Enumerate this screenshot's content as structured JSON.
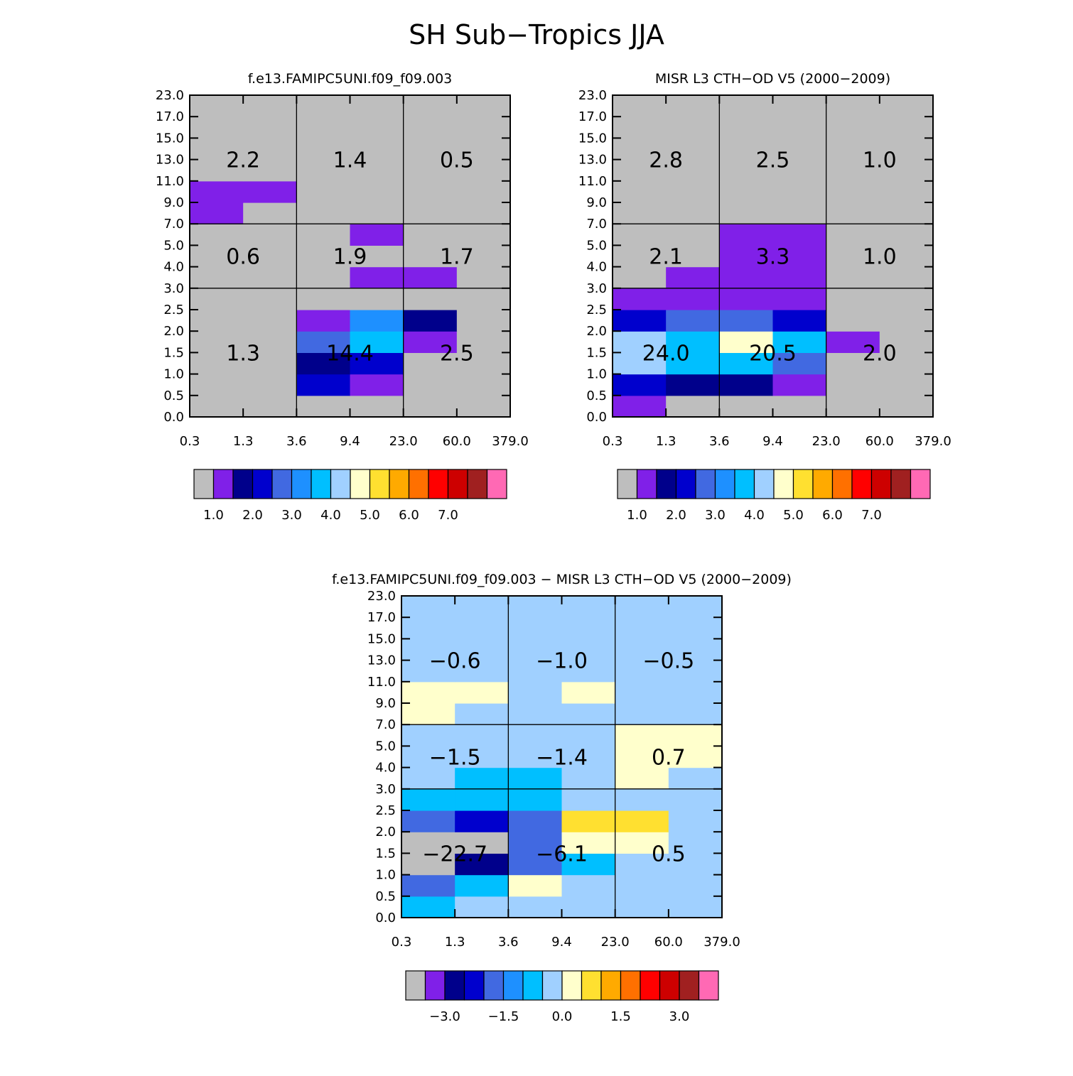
{
  "title": "SH Sub−Tropics JJA",
  "x_tick_labels": [
    "0.3",
    "1.3",
    "3.6",
    "9.4",
    "23.0",
    "60.0",
    "379.0"
  ],
  "y_tick_labels": [
    "0.0",
    "0.5",
    "1.0",
    "1.5",
    "2.0",
    "2.5",
    "3.0",
    "4.0",
    "5.0",
    "7.0",
    "9.0",
    "11.0",
    "13.0",
    "15.0",
    "17.0",
    "23.0"
  ],
  "colors": {
    "palette": [
      "#bebebe",
      "#8020e8",
      "#00008b",
      "#0000cd",
      "#4169e1",
      "#1e90ff",
      "#00bfff",
      "#a0d0ff",
      "#ffffcc",
      "#ffe030",
      "#ffaa00",
      "#ff7000",
      "#ff0000",
      "#cd0000",
      "#a02020",
      "#ff69b4"
    ]
  },
  "chart_data": [
    {
      "type": "heatmap",
      "title": "f.e13.FAMIPC5UNI.f09_f09.003",
      "x_bins": [
        "0.3",
        "1.3",
        "3.6",
        "9.4",
        "23.0",
        "60.0",
        "379.0"
      ],
      "y_bins": [
        "0.0",
        "0.5",
        "1.0",
        "1.5",
        "2.0",
        "2.5",
        "3.0",
        "4.0",
        "5.0",
        "7.0",
        "9.0",
        "11.0",
        "13.0",
        "15.0",
        "17.0",
        "23.0"
      ],
      "cells_note": "color index per cell, rows from bottom (y bin 0) to top, columns left to right; 0 = below lowest level",
      "cells": [
        [
          0,
          0,
          0,
          0,
          0,
          0
        ],
        [
          0,
          0,
          3,
          1,
          0,
          0
        ],
        [
          0,
          0,
          2,
          3,
          0,
          0
        ],
        [
          0,
          0,
          4,
          6,
          1,
          0
        ],
        [
          0,
          0,
          1,
          5,
          2,
          0
        ],
        [
          0,
          0,
          0,
          0,
          0,
          0
        ],
        [
          0,
          0,
          0,
          1,
          1,
          0
        ],
        [
          0,
          0,
          0,
          0,
          0,
          0
        ],
        [
          0,
          0,
          0,
          1,
          0,
          0
        ],
        [
          1,
          0,
          0,
          0,
          0,
          0
        ],
        [
          1,
          1,
          0,
          0,
          0,
          0
        ],
        [
          0,
          0,
          0,
          0,
          0,
          0
        ],
        [
          0,
          0,
          0,
          0,
          0,
          0
        ],
        [
          0,
          0,
          0,
          0,
          0,
          0
        ],
        [
          0,
          0,
          0,
          0,
          0,
          0
        ]
      ],
      "region_totals": [
        {
          "label": "2.2",
          "col": 0,
          "row": 2
        },
        {
          "label": "1.4",
          "col": 1,
          "row": 2
        },
        {
          "label": "0.5",
          "col": 2,
          "row": 2
        },
        {
          "label": "0.6",
          "col": 0,
          "row": 1
        },
        {
          "label": "1.9",
          "col": 1,
          "row": 1
        },
        {
          "label": "1.7",
          "col": 2,
          "row": 1
        },
        {
          "label": "1.3",
          "col": 0,
          "row": 0
        },
        {
          "label": "14.4",
          "col": 1,
          "row": 0
        },
        {
          "label": "2.5",
          "col": 2,
          "row": 0
        }
      ],
      "colorbar": {
        "labels": [
          "1.0",
          "2.0",
          "3.0",
          "4.0",
          "5.0",
          "6.0",
          "7.0"
        ]
      }
    },
    {
      "type": "heatmap",
      "title": "MISR L3 CTH−OD V5 (2000−2009)",
      "x_bins": [
        "0.3",
        "1.3",
        "3.6",
        "9.4",
        "23.0",
        "60.0",
        "379.0"
      ],
      "y_bins": [
        "0.0",
        "0.5",
        "1.0",
        "1.5",
        "2.0",
        "2.5",
        "3.0",
        "4.0",
        "5.0",
        "7.0",
        "9.0",
        "11.0",
        "13.0",
        "15.0",
        "17.0",
        "23.0"
      ],
      "cells_note": "color index per cell, rows from bottom (y bin 0) to top, columns left to right; 0 = below lowest level",
      "cells": [
        [
          1,
          0,
          0,
          0,
          0,
          0
        ],
        [
          3,
          2,
          2,
          1,
          0,
          0
        ],
        [
          7,
          6,
          6,
          4,
          0,
          0
        ],
        [
          7,
          6,
          8,
          6,
          1,
          0
        ],
        [
          3,
          4,
          4,
          3,
          0,
          0
        ],
        [
          1,
          1,
          1,
          1,
          0,
          0
        ],
        [
          0,
          1,
          1,
          1,
          0,
          0
        ],
        [
          0,
          0,
          1,
          1,
          0,
          0
        ],
        [
          0,
          0,
          1,
          1,
          0,
          0
        ],
        [
          0,
          0,
          0,
          0,
          0,
          0
        ],
        [
          0,
          0,
          0,
          0,
          0,
          0
        ],
        [
          0,
          0,
          0,
          0,
          0,
          0
        ],
        [
          0,
          0,
          0,
          0,
          0,
          0
        ],
        [
          0,
          0,
          0,
          0,
          0,
          0
        ],
        [
          0,
          0,
          0,
          0,
          0,
          0
        ]
      ],
      "region_totals": [
        {
          "label": "2.8",
          "col": 0,
          "row": 2
        },
        {
          "label": "2.5",
          "col": 1,
          "row": 2
        },
        {
          "label": "1.0",
          "col": 2,
          "row": 2
        },
        {
          "label": "2.1",
          "col": 0,
          "row": 1
        },
        {
          "label": "3.3",
          "col": 1,
          "row": 1
        },
        {
          "label": "1.0",
          "col": 2,
          "row": 1
        },
        {
          "label": "24.0",
          "col": 0,
          "row": 0
        },
        {
          "label": "20.5",
          "col": 1,
          "row": 0
        },
        {
          "label": "2.0",
          "col": 2,
          "row": 0
        }
      ],
      "colorbar": {
        "labels": [
          "1.0",
          "2.0",
          "3.0",
          "4.0",
          "5.0",
          "6.0",
          "7.0"
        ]
      }
    },
    {
      "type": "heatmap",
      "title": "f.e13.FAMIPC5UNI.f09_f09.003 − MISR L3 CTH−OD V5 (2000−2009)",
      "x_bins": [
        "0.3",
        "1.3",
        "3.6",
        "9.4",
        "23.0",
        "60.0",
        "379.0"
      ],
      "y_bins": [
        "0.0",
        "0.5",
        "1.0",
        "1.5",
        "2.0",
        "2.5",
        "3.0",
        "4.0",
        "5.0",
        "7.0",
        "9.0",
        "11.0",
        "13.0",
        "15.0",
        "17.0",
        "23.0"
      ],
      "cells_note": "color index per cell, rows from bottom (y bin 0) to top, columns left to right; 0 = below lowest level",
      "cells": [
        [
          6,
          7,
          7,
          7,
          7,
          7
        ],
        [
          4,
          6,
          8,
          7,
          7,
          7
        ],
        [
          0,
          2,
          4,
          6,
          7,
          7
        ],
        [
          0,
          0,
          4,
          8,
          8,
          7
        ],
        [
          4,
          3,
          4,
          9,
          9,
          7
        ],
        [
          6,
          6,
          6,
          7,
          7,
          7
        ],
        [
          7,
          6,
          6,
          7,
          8,
          7
        ],
        [
          7,
          7,
          7,
          7,
          8,
          8
        ],
        [
          7,
          7,
          7,
          7,
          8,
          8
        ],
        [
          8,
          7,
          7,
          7,
          7,
          7
        ],
        [
          8,
          8,
          7,
          8,
          7,
          7
        ],
        [
          7,
          7,
          7,
          7,
          7,
          7
        ],
        [
          7,
          7,
          7,
          7,
          7,
          7
        ],
        [
          7,
          7,
          7,
          7,
          7,
          7
        ],
        [
          7,
          7,
          7,
          7,
          7,
          7
        ]
      ],
      "region_totals": [
        {
          "label": "−0.6",
          "col": 0,
          "row": 2
        },
        {
          "label": "−1.0",
          "col": 1,
          "row": 2
        },
        {
          "label": "−0.5",
          "col": 2,
          "row": 2
        },
        {
          "label": "−1.5",
          "col": 0,
          "row": 1
        },
        {
          "label": "−1.4",
          "col": 1,
          "row": 1
        },
        {
          "label": "0.7",
          "col": 2,
          "row": 1
        },
        {
          "label": "−22.7",
          "col": 0,
          "row": 0
        },
        {
          "label": "−6.1",
          "col": 1,
          "row": 0
        },
        {
          "label": "0.5",
          "col": 2,
          "row": 0
        }
      ],
      "colorbar": {
        "labels": [
          "−3.0",
          "−1.5",
          "0.0",
          "1.5",
          "3.0"
        ]
      }
    }
  ]
}
